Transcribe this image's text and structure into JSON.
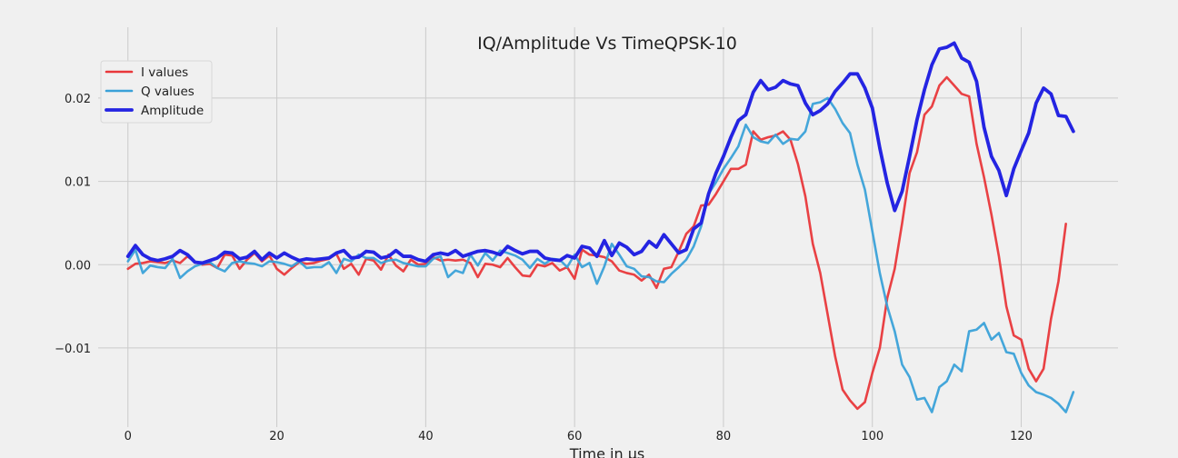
{
  "chart_data": {
    "type": "line",
    "title": "IQ/Amplitude Vs TimeQPSK-10",
    "xlabel": "Time in μs",
    "ylabel": "",
    "xlim": [
      -4,
      133
    ],
    "ylim": [
      -0.0195,
      0.0285
    ],
    "xticks": [
      0,
      20,
      40,
      60,
      80,
      100,
      120
    ],
    "xtick_labels": [
      "0",
      "20",
      "40",
      "60",
      "80",
      "100",
      "120"
    ],
    "yticks": [
      -0.01,
      0.0,
      0.01,
      0.02
    ],
    "ytick_labels": [
      "−0.01",
      "0.00",
      "0.01",
      "0.02"
    ],
    "grid": true,
    "legend_position": "top-left",
    "series": [
      {
        "name": "I values",
        "color": "#e8373a",
        "width": 2.6,
        "values": [
          -0.0005,
          0.0001,
          0.0002,
          0.0004,
          0.0003,
          0.0002,
          0.0005,
          0.0002,
          0.001,
          0.0003,
          0.0,
          0.0001,
          -0.0004,
          0.0012,
          0.0011,
          -0.0005,
          0.0006,
          0.0014,
          0.0004,
          0.0011,
          -0.0005,
          -0.0012,
          -0.0004,
          0.0003,
          0.0001,
          0.0002,
          0.0005,
          0.0007,
          0.0013,
          -0.0005,
          0.0001,
          -0.0012,
          0.0007,
          0.0005,
          -0.0006,
          0.0012,
          -0.0001,
          -0.0008,
          0.0006,
          0.0,
          0.0001,
          0.0009,
          0.0005,
          0.0006,
          0.0005,
          0.0006,
          0.0002,
          -0.0015,
          0.0001,
          0.0,
          -0.0003,
          0.0008,
          -0.0003,
          -0.0013,
          -0.0014,
          0.0,
          -0.0002,
          0.0002,
          -0.0007,
          -0.0003,
          -0.0017,
          0.0018,
          0.0012,
          0.0011,
          0.0009,
          0.0004,
          -0.0007,
          -0.001,
          -0.0012,
          -0.0019,
          -0.0012,
          -0.0028,
          -0.0005,
          -0.0003,
          0.0016,
          0.0037,
          0.0046,
          0.0071,
          0.0072,
          0.0085,
          0.01,
          0.0115,
          0.0115,
          0.012,
          0.016,
          0.015,
          0.0153,
          0.0155,
          0.016,
          0.015,
          0.0121,
          0.0082,
          0.0025,
          -0.001,
          -0.006,
          -0.011,
          -0.015,
          -0.0163,
          -0.0173,
          -0.0165,
          -0.013,
          -0.01,
          -0.004,
          -0.0005,
          0.005,
          0.011,
          0.0135,
          0.018,
          0.019,
          0.0215,
          0.0225,
          0.0215,
          0.0205,
          0.0202,
          0.0145,
          0.0105,
          0.006,
          0.001,
          -0.005,
          -0.0085,
          -0.009,
          -0.0125,
          -0.014,
          -0.0125,
          -0.0065,
          -0.002,
          0.0049
        ]
      },
      {
        "name": "Q values",
        "color": "#3aa1d8",
        "width": 2.6,
        "values": [
          0.0004,
          0.0018,
          -0.001,
          -0.0001,
          -0.0003,
          -0.0004,
          0.0007,
          -0.0016,
          -0.0008,
          -0.0002,
          0.0001,
          0.0003,
          -0.0004,
          -0.0008,
          0.0002,
          0.0004,
          0.0002,
          0.0001,
          -0.0002,
          0.0004,
          0.0003,
          0.0001,
          -0.0002,
          0.0004,
          -0.0004,
          -0.0003,
          -0.0003,
          0.0003,
          -0.001,
          0.0007,
          0.0004,
          0.0012,
          0.0008,
          0.0008,
          0.0002,
          0.0005,
          0.0006,
          0.0002,
          0.0,
          -0.0002,
          -0.0002,
          0.0007,
          0.001,
          -0.0015,
          -0.0007,
          -0.001,
          0.0012,
          -0.0001,
          0.0014,
          0.0005,
          0.0017,
          0.0014,
          0.0011,
          0.0006,
          -0.0004,
          0.0007,
          0.0001,
          0.0007,
          0.0006,
          -0.0003,
          0.0012,
          -0.0003,
          0.0002,
          -0.0023,
          -0.0002,
          0.0025,
          0.0012,
          -0.0002,
          -0.0005,
          -0.0014,
          -0.0015,
          -0.002,
          -0.0021,
          -0.0011,
          -0.0003,
          0.0006,
          0.0022,
          0.0046,
          0.0085,
          0.0099,
          0.0115,
          0.0128,
          0.0142,
          0.0168,
          0.0153,
          0.0148,
          0.0146,
          0.0156,
          0.0145,
          0.0151,
          0.015,
          0.016,
          0.0193,
          0.0195,
          0.02,
          0.0187,
          0.017,
          0.0158,
          0.012,
          0.009,
          0.004,
          -0.001,
          -0.005,
          -0.008,
          -0.012,
          -0.0135,
          -0.0162,
          -0.016,
          -0.0177,
          -0.0147,
          -0.014,
          -0.012,
          -0.0128,
          -0.008,
          -0.0078,
          -0.007,
          -0.009,
          -0.0082,
          -0.0105,
          -0.0107,
          -0.013,
          -0.0145,
          -0.0153,
          -0.0156,
          -0.016,
          -0.0167,
          -0.0177,
          -0.0153
        ]
      },
      {
        "name": "Amplitude",
        "color": "#2424e2",
        "width": 3.8,
        "values": [
          0.001,
          0.0023,
          0.0012,
          0.0007,
          0.0005,
          0.0007,
          0.001,
          0.0017,
          0.0012,
          0.0003,
          0.0002,
          0.0005,
          0.0008,
          0.0015,
          0.0014,
          0.0007,
          0.0009,
          0.0016,
          0.0006,
          0.0014,
          0.0008,
          0.0014,
          0.0009,
          0.0005,
          0.0007,
          0.0006,
          0.0007,
          0.0008,
          0.0014,
          0.0017,
          0.0008,
          0.0009,
          0.0016,
          0.0015,
          0.0008,
          0.001,
          0.0017,
          0.001,
          0.001,
          0.0006,
          0.0004,
          0.0012,
          0.0014,
          0.0012,
          0.0017,
          0.001,
          0.0013,
          0.0016,
          0.0017,
          0.0015,
          0.0012,
          0.0022,
          0.0017,
          0.0013,
          0.0016,
          0.0016,
          0.0008,
          0.0006,
          0.0005,
          0.0011,
          0.0008,
          0.0022,
          0.002,
          0.001,
          0.0029,
          0.0011,
          0.0026,
          0.0021,
          0.0012,
          0.0016,
          0.0028,
          0.0021,
          0.0036,
          0.0025,
          0.0014,
          0.0018,
          0.0043,
          0.005,
          0.0085,
          0.011,
          0.013,
          0.0153,
          0.0173,
          0.018,
          0.0207,
          0.0221,
          0.021,
          0.0213,
          0.0221,
          0.0217,
          0.0215,
          0.0194,
          0.018,
          0.0185,
          0.0193,
          0.0208,
          0.0218,
          0.0229,
          0.0229,
          0.0212,
          0.0188,
          0.014,
          0.0098,
          0.0065,
          0.0088,
          0.013,
          0.0174,
          0.021,
          0.024,
          0.0259,
          0.0261,
          0.0266,
          0.0248,
          0.0243,
          0.022,
          0.0165,
          0.013,
          0.0113,
          0.0083,
          0.0115,
          0.0137,
          0.0158,
          0.0194,
          0.0212,
          0.0205,
          0.0179,
          0.0178,
          0.016
        ]
      }
    ]
  }
}
